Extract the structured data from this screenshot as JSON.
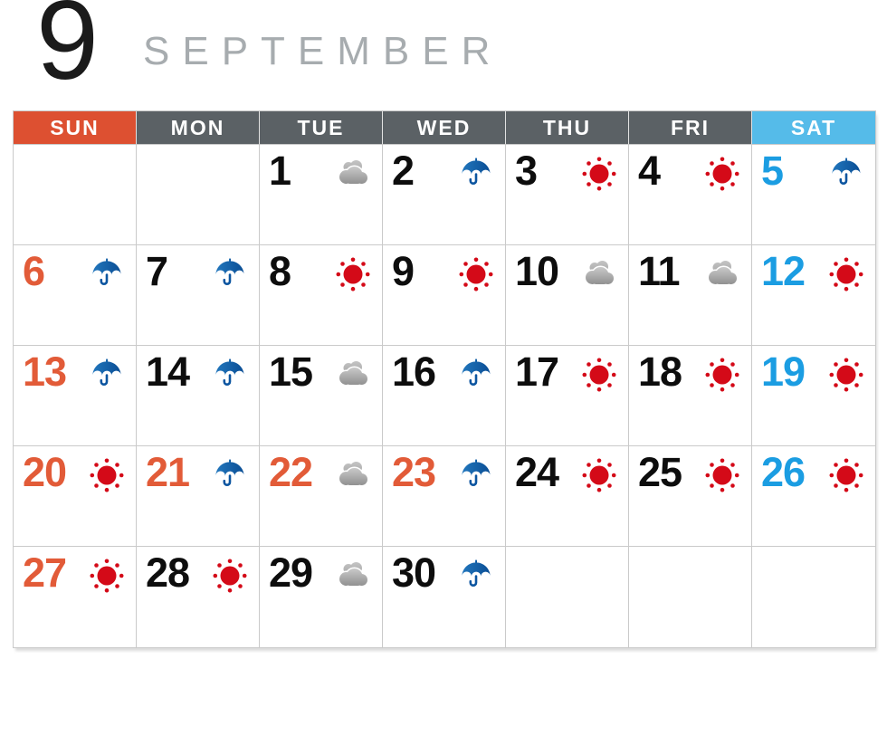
{
  "header": {
    "month_number": "9",
    "month_name": "SEPTEMBER"
  },
  "colors": {
    "month_number_text": "#1B1B1B",
    "month_name_text": "#A7ACAF",
    "header_text": "#FFFFFF",
    "sunday_header_bg": "#DD5031",
    "weekday_header_bg": "#5B6165",
    "saturday_header_bg": "#55BBE9",
    "sunday_text": "#E25B38",
    "holiday_text": "#E25B38",
    "saturday_text": "#1B9DE2",
    "weekday_text": "#0D0D0D",
    "grid_border": "#CACACA",
    "sun_red": "#D40A18",
    "umbrella_blue_light": "#2277BD",
    "umbrella_blue_dark": "#0A4D94",
    "umbrella_handle": "#0C55A0",
    "cloud_gray_light": "#C9C9C9",
    "cloud_gray_dark": "#8E8E8E",
    "cloud_back_light": "#C4C4C4",
    "cloud_back_dark": "#A2A2A2"
  },
  "weekdays": [
    {
      "label": "SUN",
      "type": "sunday"
    },
    {
      "label": "MON",
      "type": "weekday"
    },
    {
      "label": "TUE",
      "type": "weekday"
    },
    {
      "label": "WED",
      "type": "weekday"
    },
    {
      "label": "THU",
      "type": "weekday"
    },
    {
      "label": "FRI",
      "type": "weekday"
    },
    {
      "label": "SAT",
      "type": "saturday"
    }
  ],
  "calendar": {
    "leading_empty_cells": 2,
    "trailing_empty_cells": 3,
    "days": [
      {
        "date": 1,
        "weather": "cloudy",
        "text_style": "weekday"
      },
      {
        "date": 2,
        "weather": "rainy",
        "text_style": "weekday"
      },
      {
        "date": 3,
        "weather": "sunny",
        "text_style": "weekday"
      },
      {
        "date": 4,
        "weather": "sunny",
        "text_style": "weekday"
      },
      {
        "date": 5,
        "weather": "rainy",
        "text_style": "saturday"
      },
      {
        "date": 6,
        "weather": "rainy",
        "text_style": "sunday"
      },
      {
        "date": 7,
        "weather": "rainy",
        "text_style": "weekday"
      },
      {
        "date": 8,
        "weather": "sunny",
        "text_style": "weekday"
      },
      {
        "date": 9,
        "weather": "sunny",
        "text_style": "weekday"
      },
      {
        "date": 10,
        "weather": "cloudy",
        "text_style": "weekday"
      },
      {
        "date": 11,
        "weather": "cloudy",
        "text_style": "weekday"
      },
      {
        "date": 12,
        "weather": "sunny",
        "text_style": "saturday"
      },
      {
        "date": 13,
        "weather": "rainy",
        "text_style": "sunday"
      },
      {
        "date": 14,
        "weather": "rainy",
        "text_style": "weekday"
      },
      {
        "date": 15,
        "weather": "cloudy",
        "text_style": "weekday"
      },
      {
        "date": 16,
        "weather": "rainy",
        "text_style": "weekday"
      },
      {
        "date": 17,
        "weather": "sunny",
        "text_style": "weekday"
      },
      {
        "date": 18,
        "weather": "sunny",
        "text_style": "weekday"
      },
      {
        "date": 19,
        "weather": "sunny",
        "text_style": "saturday"
      },
      {
        "date": 20,
        "weather": "sunny",
        "text_style": "sunday"
      },
      {
        "date": 21,
        "weather": "rainy",
        "text_style": "holiday"
      },
      {
        "date": 22,
        "weather": "cloudy",
        "text_style": "holiday"
      },
      {
        "date": 23,
        "weather": "rainy",
        "text_style": "holiday"
      },
      {
        "date": 24,
        "weather": "sunny",
        "text_style": "weekday"
      },
      {
        "date": 25,
        "weather": "sunny",
        "text_style": "weekday"
      },
      {
        "date": 26,
        "weather": "sunny",
        "text_style": "saturday"
      },
      {
        "date": 27,
        "weather": "sunny",
        "text_style": "sunday"
      },
      {
        "date": 28,
        "weather": "sunny",
        "text_style": "weekday"
      },
      {
        "date": 29,
        "weather": "cloudy",
        "text_style": "weekday"
      },
      {
        "date": 30,
        "weather": "rainy",
        "text_style": "weekday"
      }
    ]
  }
}
